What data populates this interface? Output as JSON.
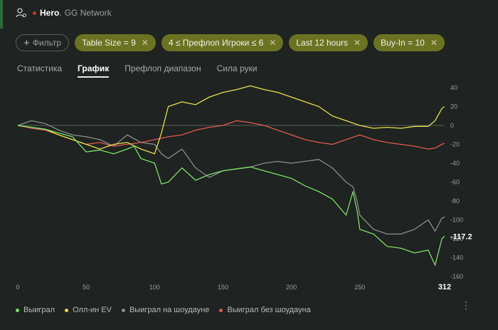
{
  "header": {
    "player": "Hero",
    "network": "GG Network",
    "status_color": "#c0392b"
  },
  "filter_button": {
    "label": "Фильтр"
  },
  "filters": [
    {
      "label": "Table Size = 9"
    },
    {
      "label": "4 ≤ Префлоп Игроки ≤ 6"
    },
    {
      "label": "Last 12 hours"
    },
    {
      "label": "Buy-In = 10"
    }
  ],
  "tabs": [
    {
      "label": "Статистика",
      "active": false
    },
    {
      "label": "График",
      "active": true
    },
    {
      "label": "Префлоп диапазон",
      "active": false
    },
    {
      "label": "Сила руки",
      "active": false
    }
  ],
  "legend": [
    {
      "label": "Выиграл",
      "color": "#7be06a"
    },
    {
      "label": "Олл-ин EV",
      "color": "#e6df4a"
    },
    {
      "label": "Выиграл на шоудауне",
      "color": "#8a8f8b"
    },
    {
      "label": "Выиграл без шоудауна",
      "color": "#e05a52"
    }
  ],
  "chart_data": {
    "type": "line",
    "xlim": [
      0,
      312
    ],
    "ylim": [
      -160,
      40
    ],
    "x_ticks": [
      0,
      50,
      100,
      150,
      200,
      250
    ],
    "x_end_label": "312",
    "y_ticks": [
      40,
      20,
      0,
      -20,
      -40,
      -60,
      -80,
      -100,
      -120,
      -140,
      -160
    ],
    "final_value_label": "-117.2",
    "series": [
      {
        "name": "Выиграл",
        "color": "#7be06a",
        "x": [
          0,
          10,
          20,
          30,
          40,
          50,
          60,
          70,
          80,
          85,
          90,
          100,
          105,
          110,
          120,
          130,
          140,
          150,
          160,
          170,
          180,
          190,
          200,
          210,
          220,
          230,
          240,
          245,
          248,
          250,
          260,
          270,
          280,
          290,
          300,
          305,
          310,
          312
        ],
        "y": [
          0,
          -2,
          -4,
          -8,
          -12,
          -28,
          -26,
          -30,
          -25,
          -22,
          -35,
          -40,
          -62,
          -60,
          -45,
          -58,
          -52,
          -48,
          -46,
          -44,
          -48,
          -52,
          -56,
          -64,
          -70,
          -78,
          -95,
          -70,
          -90,
          -110,
          -115,
          -128,
          -130,
          -135,
          -132,
          -148,
          -120,
          -117.2
        ]
      },
      {
        "name": "Олл-ин EV",
        "color": "#e6df4a",
        "x": [
          0,
          10,
          20,
          30,
          40,
          50,
          60,
          70,
          80,
          90,
          100,
          105,
          110,
          120,
          130,
          140,
          150,
          160,
          170,
          180,
          190,
          200,
          210,
          220,
          230,
          240,
          250,
          260,
          270,
          280,
          290,
          300,
          305,
          310,
          312
        ],
        "y": [
          0,
          -2,
          -4,
          -10,
          -15,
          -20,
          -25,
          -20,
          -18,
          -25,
          -30,
          -8,
          20,
          25,
          22,
          30,
          35,
          38,
          42,
          38,
          35,
          30,
          25,
          20,
          10,
          5,
          0,
          -3,
          -2,
          -3,
          -1,
          -1,
          5,
          18,
          20
        ]
      },
      {
        "name": "Выиграл на шоудауне",
        "color": "#8a8f8b",
        "x": [
          0,
          10,
          20,
          30,
          40,
          50,
          60,
          70,
          80,
          90,
          100,
          105,
          110,
          120,
          130,
          140,
          150,
          160,
          170,
          180,
          190,
          200,
          210,
          220,
          230,
          240,
          245,
          248,
          250,
          260,
          270,
          280,
          290,
          300,
          305,
          310,
          312
        ],
        "y": [
          0,
          5,
          2,
          -5,
          -10,
          -12,
          -15,
          -22,
          -10,
          -18,
          -20,
          -30,
          -35,
          -25,
          -45,
          -55,
          -48,
          -46,
          -44,
          -40,
          -38,
          -40,
          -38,
          -36,
          -45,
          -60,
          -65,
          -80,
          -95,
          -110,
          -115,
          -115,
          -110,
          -100,
          -112,
          -98,
          -97
        ]
      },
      {
        "name": "Выиграл без шоудауна",
        "color": "#e05a52",
        "x": [
          0,
          10,
          20,
          30,
          40,
          50,
          60,
          70,
          80,
          90,
          100,
          110,
          120,
          130,
          140,
          150,
          160,
          170,
          180,
          190,
          200,
          210,
          220,
          230,
          240,
          250,
          260,
          270,
          280,
          290,
          300,
          305,
          310,
          312
        ],
        "y": [
          0,
          -3,
          -5,
          -10,
          -15,
          -20,
          -18,
          -22,
          -20,
          -18,
          -15,
          -12,
          -10,
          -5,
          -2,
          0,
          5,
          3,
          0,
          -5,
          -10,
          -15,
          -18,
          -20,
          -15,
          -10,
          -15,
          -18,
          -20,
          -22,
          -25,
          -24,
          -20,
          -19
        ]
      }
    ]
  }
}
